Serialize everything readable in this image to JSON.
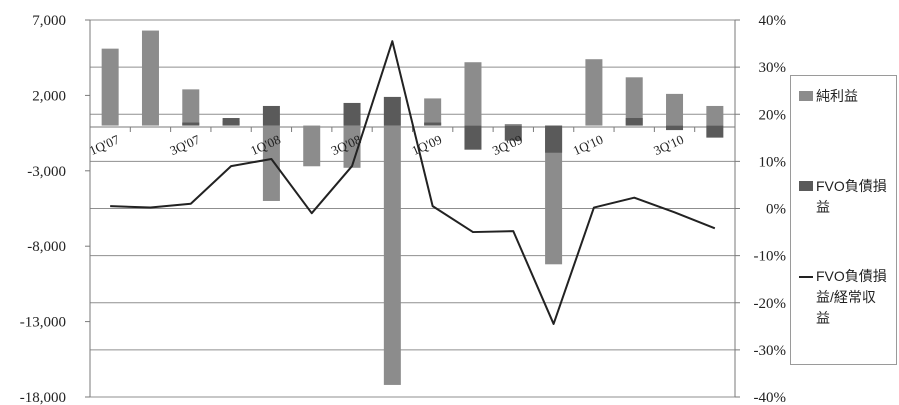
{
  "chart_data": {
    "type": "bar",
    "categories": [
      "1Q'07",
      "2Q'07",
      "3Q'07",
      "4Q'07",
      "1Q'08",
      "2Q'08",
      "3Q'08",
      "4Q'08",
      "1Q'09",
      "2Q'09",
      "3Q'09",
      "4Q'09",
      "1Q'10",
      "2Q'10",
      "3Q'10",
      "4Q'10"
    ],
    "category_tick_labels": [
      "1Q'07",
      "3Q'07",
      "1Q'08",
      "3Q'08",
      "1Q'09",
      "3Q'09",
      "1Q'10",
      "3Q'10"
    ],
    "y_left": {
      "ticks": [
        "7,000",
        "2,000",
        "-3,000",
        "-8,000",
        "-13,000",
        "-18,000"
      ],
      "range": [
        -18000,
        7000
      ]
    },
    "y_right": {
      "ticks": [
        "40%",
        "30%",
        "20%",
        "10%",
        "0%",
        "-10%",
        "-20%",
        "-30%",
        "-40%"
      ],
      "range": [
        -40,
        40
      ]
    },
    "series": [
      {
        "name": "純利益",
        "kind": "bar",
        "axis": "left",
        "color": "#8c8c8c",
        "values": [
          5100,
          6300,
          2400,
          300,
          -5000,
          -2700,
          -2800,
          -17200,
          1800,
          4200,
          100,
          -9200,
          4400,
          3200,
          2100,
          1300
        ]
      },
      {
        "name": "FVO負債損益",
        "kind": "bar",
        "axis": "left",
        "color": "#5a5a5a",
        "values": [
          0,
          0,
          200,
          500,
          1300,
          0,
          1500,
          1900,
          200,
          -1600,
          -1000,
          -1800,
          0,
          500,
          -300,
          -800
        ]
      },
      {
        "name": "FVO負債損益/経常収益",
        "kind": "line",
        "axis": "right",
        "color": "#222222",
        "values": [
          0.5,
          0.2,
          1.0,
          9.0,
          10.5,
          -1.0,
          9.0,
          35.5,
          0.5,
          -5.0,
          -4.8,
          -24.5,
          0.2,
          2.3,
          -0.8,
          -4.2
        ]
      }
    ],
    "legend": {
      "position": "right",
      "items": [
        "純利益",
        "FVO負債損益",
        "FVO負債損益/経常収益"
      ]
    },
    "grid": true
  }
}
